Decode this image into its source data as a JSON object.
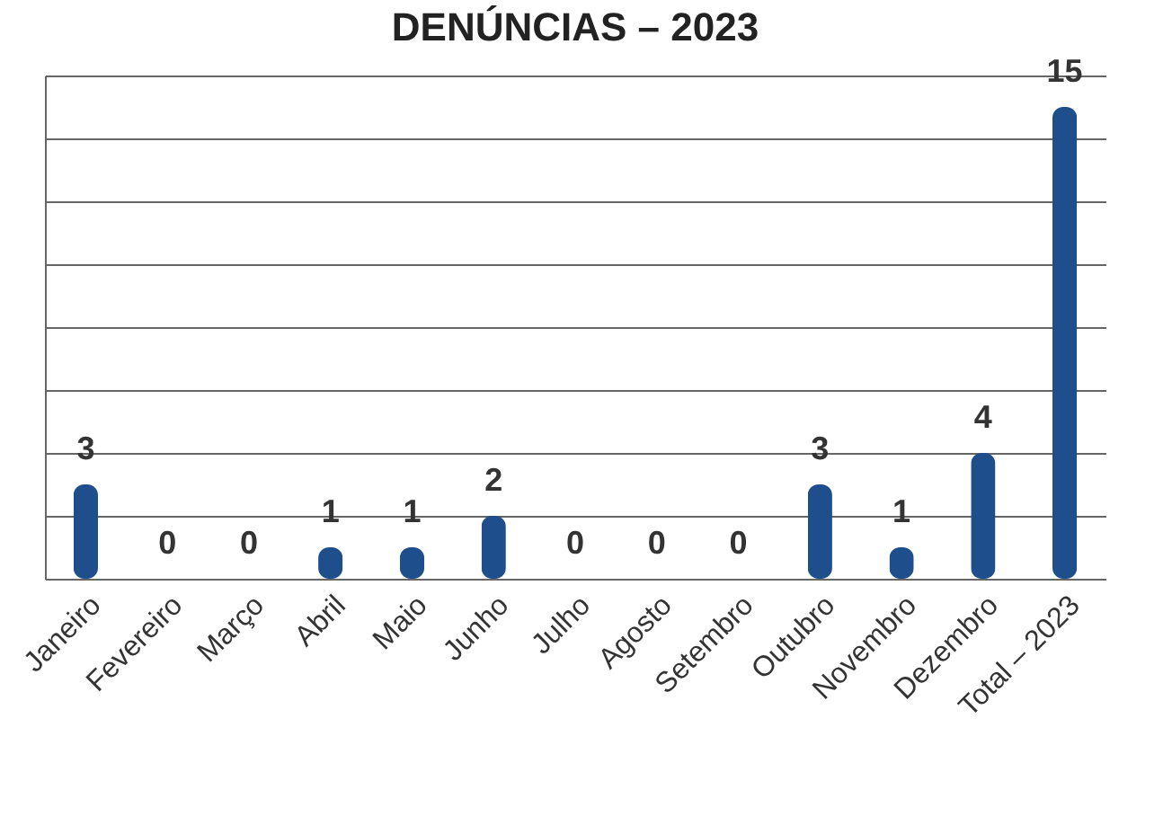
{
  "chart_data": {
    "type": "bar",
    "title": "DENÚNCIAS – 2023",
    "categories": [
      "Janeiro",
      "Fevereiro",
      "Março",
      "Abril",
      "Maio",
      "Junho",
      "Julho",
      "Agosto",
      "Setembro",
      "Outubro",
      "Novembro",
      "Dezembro",
      "Total – 2023"
    ],
    "values": [
      3,
      0,
      0,
      1,
      1,
      2,
      0,
      0,
      0,
      3,
      1,
      4,
      15
    ],
    "color": "#1f4e8c",
    "ylim": [
      0,
      16
    ],
    "grid": "y",
    "data_labels": true,
    "tick_labels": "x"
  }
}
